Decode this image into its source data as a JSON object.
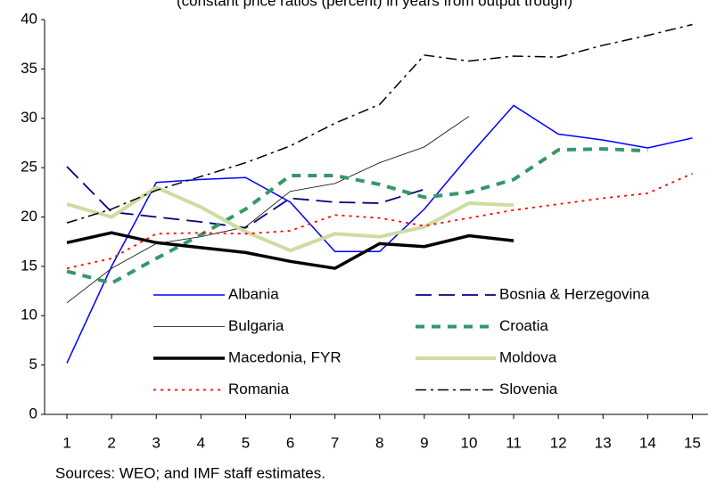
{
  "chart_data": {
    "type": "line",
    "subtitle": "(constant price ratios (percent) in years from output trough)",
    "note": "Sources: WEO; and IMF staff estimates.",
    "x": [
      1,
      2,
      3,
      4,
      5,
      6,
      7,
      8,
      9,
      10,
      11,
      12,
      13,
      14,
      15
    ],
    "xlim": [
      0.5,
      15.35
    ],
    "xticks": [
      1,
      2,
      3,
      4,
      5,
      6,
      7,
      8,
      9,
      10,
      11,
      12,
      13,
      14,
      15
    ],
    "ylim": [
      0,
      40
    ],
    "yticks": [
      0,
      5,
      10,
      15,
      20,
      25,
      30,
      35,
      40
    ],
    "series": [
      {
        "name": "Albania",
        "color": "#0000ff",
        "width": 1.5,
        "dash": "none",
        "values": [
          5.2,
          15,
          23.5,
          23.8,
          24,
          21.5,
          16.5,
          16.5,
          20.8,
          26.2,
          31.3,
          28.4,
          27.8,
          27,
          28
        ]
      },
      {
        "name": "Bosnia & Herzegovina",
        "color": "#000080",
        "width": 1.8,
        "dash": "18 8",
        "values": [
          25.1,
          20.5,
          20,
          19.5,
          18.9,
          21.9,
          21.5,
          21.4,
          22.8,
          null,
          null,
          null,
          null,
          null,
          null
        ]
      },
      {
        "name": "Bulgaria",
        "color": "#000000",
        "width": 0.8,
        "dash": "none",
        "values": [
          11.3,
          14.8,
          17.3,
          18,
          19,
          22.6,
          23.4,
          25.5,
          27.1,
          30.2,
          null,
          null,
          null,
          null,
          null
        ]
      },
      {
        "name": "Croatia",
        "color": "#339966",
        "width": 4,
        "dash": "10 8",
        "values": [
          14.5,
          13.3,
          15.8,
          18.2,
          20.8,
          24.2,
          24.2,
          23.3,
          22,
          22.5,
          23.8,
          26.8,
          26.9,
          26.7,
          null
        ]
      },
      {
        "name": "Macedonia, FYR",
        "color": "#000000",
        "width": 3.5,
        "dash": "none",
        "values": [
          17.4,
          18.4,
          17.4,
          16.9,
          16.4,
          15.5,
          14.8,
          17.3,
          17,
          18.1,
          17.6,
          null,
          null,
          null,
          null
        ]
      },
      {
        "name": "Moldova",
        "color": "#ccdda0",
        "width": 4,
        "dash": "none",
        "values": [
          21.3,
          20,
          23,
          21,
          18.5,
          16.6,
          18.3,
          18,
          19,
          21.4,
          21.2,
          null,
          null,
          null,
          null
        ]
      },
      {
        "name": "Romania",
        "color": "#ff0000",
        "width": 1.8,
        "dash": "3 5",
        "values": [
          14.8,
          15.8,
          18.3,
          18.4,
          18.3,
          18.6,
          20.2,
          19.9,
          19.1,
          19.9,
          20.7,
          21.3,
          21.9,
          22.4,
          24.4
        ]
      },
      {
        "name": "Slovenia",
        "color": "#000000",
        "width": 1.5,
        "dash": "12 5 3 5",
        "values": [
          19.4,
          20.8,
          22.7,
          24.1,
          25.5,
          27.2,
          29.5,
          31.4,
          36.4,
          35.8,
          36.3,
          36.2,
          37.4,
          38.4,
          39.5
        ]
      }
    ]
  }
}
